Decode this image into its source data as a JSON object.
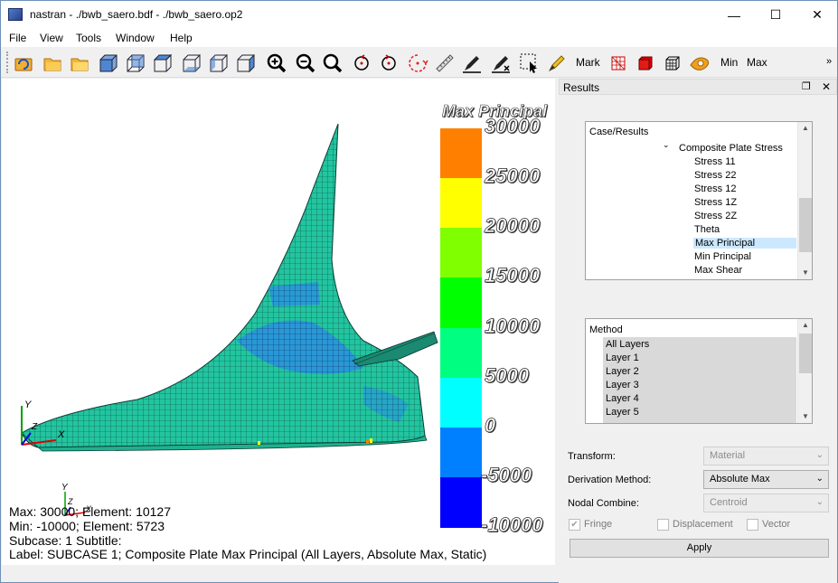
{
  "window": {
    "title": "nastran - ./bwb_saero.bdf - ./bwb_saero.op2",
    "minimize": "—",
    "maximize": "☐",
    "close": "✕"
  },
  "menu": [
    "File",
    "View",
    "Tools",
    "Window",
    "Help"
  ],
  "toolbar": {
    "mark_label": "Mark",
    "min_label": "Min",
    "max_label": "Max",
    "overflow": "»"
  },
  "viewport": {
    "legend": {
      "title": "Max Principal",
      "labels": [
        "30000",
        "25000",
        "20000",
        "15000",
        "10000",
        "5000",
        "0",
        "-5000",
        "-10000"
      ],
      "colors": [
        "#ff8000",
        "#ffff00",
        "#80ff00",
        "#00ff00",
        "#00ff80",
        "#00ffff",
        "#0080ff",
        "#0000ff"
      ]
    },
    "axis_labels": {
      "x": "X",
      "y": "Y",
      "z": "Z"
    },
    "info": {
      "max": "Max:  30000; Element: 10127",
      "min": "Min:  -10000; Element: 5723",
      "subcase": "Subcase: 1 Subtitle:",
      "label": "Label: SUBCASE 1; Composite Plate Max Principal (All Layers, Absolute Max, Static)"
    }
  },
  "results_panel": {
    "title": "Results",
    "float_icon": "❐",
    "close_icon": "✕",
    "case_results": {
      "header": "Case/Results",
      "group": "Composite Plate Stress",
      "items": [
        "Stress 11",
        "Stress 22",
        "Stress 12",
        "Stress 1Z",
        "Stress 2Z",
        "Theta",
        "Max Principal",
        "Min Principal",
        "Max Shear"
      ],
      "selected": "Max Principal"
    },
    "method": {
      "header": "Method",
      "items": [
        "All Layers",
        "Layer 1",
        "Layer 2",
        "Layer 3",
        "Layer 4",
        "Layer 5"
      ]
    },
    "transform_label": "Transform:",
    "transform_value": "Material",
    "derivation_label": "Derivation Method:",
    "derivation_value": "Absolute Max",
    "nodal_label": "Nodal Combine:",
    "nodal_value": "Centroid",
    "fringe_label": "Fringe",
    "fringe_checked": "✔",
    "displacement_label": "Displacement",
    "vector_label": "Vector",
    "apply_label": "Apply"
  }
}
